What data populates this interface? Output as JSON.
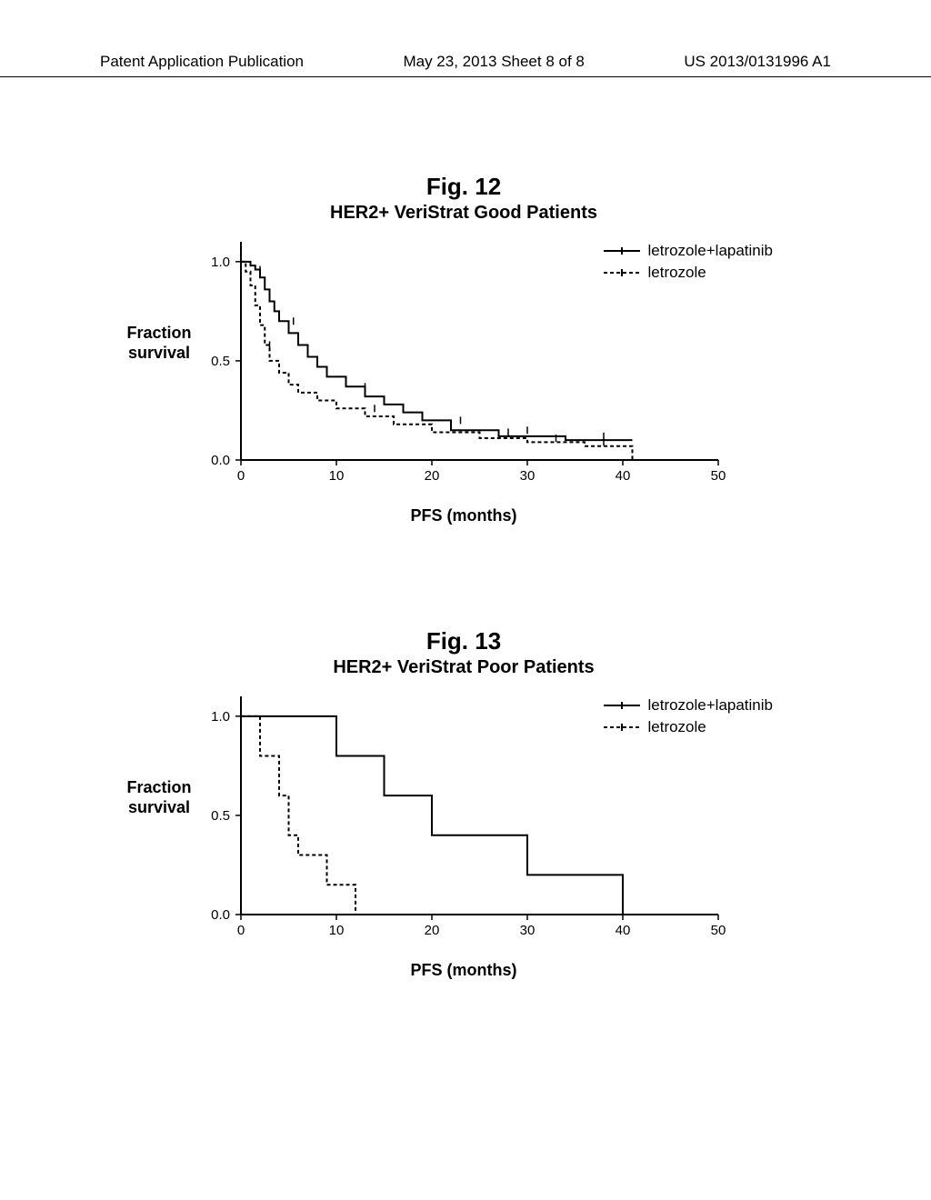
{
  "header": {
    "left": "Patent Application Publication",
    "center": "May 23, 2013  Sheet 8 of 8",
    "right": "US 2013/0131996 A1"
  },
  "colors": {
    "line": "#000000",
    "background": "#ffffff"
  },
  "figures": [
    {
      "id": "fig12",
      "label": "Fig. 12",
      "title": "HER2+ VeriStrat Good Patients",
      "ylabel_line1": "Fraction",
      "ylabel_line2": "survival",
      "xlabel": "PFS (months)",
      "xlim": [
        0,
        50
      ],
      "ylim": [
        0,
        1.1
      ],
      "xticks": [
        0,
        10,
        20,
        30,
        40,
        50
      ],
      "yticks": [
        0.0,
        0.5,
        1.0
      ],
      "ytick_labels": [
        "0.0",
        "0.5",
        "1.0"
      ],
      "fontsize_ticks": 15,
      "fontsize_labels": 18,
      "line_color": "#000000",
      "line_width": 2,
      "legend": [
        {
          "label": "letrozole+lapatinib",
          "dash": "solid",
          "tick": true
        },
        {
          "label": "letrozole",
          "dash": "dashed",
          "tick": true
        }
      ],
      "series": [
        {
          "name": "letrozole+lapatinib",
          "dash": "solid",
          "points": [
            [
              0,
              1.0
            ],
            [
              1,
              1.0
            ],
            [
              1,
              0.98
            ],
            [
              1.5,
              0.98
            ],
            [
              1.5,
              0.96
            ],
            [
              2,
              0.96
            ],
            [
              2,
              0.92
            ],
            [
              2.5,
              0.92
            ],
            [
              2.5,
              0.86
            ],
            [
              3,
              0.86
            ],
            [
              3,
              0.8
            ],
            [
              3.5,
              0.8
            ],
            [
              3.5,
              0.75
            ],
            [
              4,
              0.75
            ],
            [
              4,
              0.7
            ],
            [
              5,
              0.7
            ],
            [
              5,
              0.64
            ],
            [
              6,
              0.64
            ],
            [
              6,
              0.58
            ],
            [
              7,
              0.58
            ],
            [
              7,
              0.52
            ],
            [
              8,
              0.52
            ],
            [
              8,
              0.47
            ],
            [
              9,
              0.47
            ],
            [
              9,
              0.42
            ],
            [
              11,
              0.42
            ],
            [
              11,
              0.37
            ],
            [
              13,
              0.37
            ],
            [
              13,
              0.32
            ],
            [
              15,
              0.32
            ],
            [
              15,
              0.28
            ],
            [
              17,
              0.28
            ],
            [
              17,
              0.24
            ],
            [
              19,
              0.24
            ],
            [
              19,
              0.2
            ],
            [
              22,
              0.2
            ],
            [
              22,
              0.15
            ],
            [
              27,
              0.15
            ],
            [
              27,
              0.12
            ],
            [
              34,
              0.12
            ],
            [
              34,
              0.1
            ],
            [
              41,
              0.1
            ],
            [
              41,
              0.1
            ]
          ],
          "censor_ticks": [
            [
              2,
              0.96
            ],
            [
              5.5,
              0.7
            ],
            [
              13,
              0.37
            ],
            [
              23,
              0.2
            ],
            [
              30,
              0.15
            ],
            [
              38,
              0.12
            ]
          ]
        },
        {
          "name": "letrozole",
          "dash": "dashed",
          "points": [
            [
              0,
              1.0
            ],
            [
              0.5,
              1.0
            ],
            [
              0.5,
              0.95
            ],
            [
              1,
              0.95
            ],
            [
              1,
              0.88
            ],
            [
              1.5,
              0.88
            ],
            [
              1.5,
              0.78
            ],
            [
              2,
              0.78
            ],
            [
              2,
              0.68
            ],
            [
              2.5,
              0.68
            ],
            [
              2.5,
              0.58
            ],
            [
              3,
              0.58
            ],
            [
              3,
              0.5
            ],
            [
              4,
              0.5
            ],
            [
              4,
              0.44
            ],
            [
              5,
              0.44
            ],
            [
              5,
              0.38
            ],
            [
              6,
              0.38
            ],
            [
              6,
              0.34
            ],
            [
              8,
              0.34
            ],
            [
              8,
              0.3
            ],
            [
              10,
              0.3
            ],
            [
              10,
              0.26
            ],
            [
              13,
              0.26
            ],
            [
              13,
              0.22
            ],
            [
              16,
              0.22
            ],
            [
              16,
              0.18
            ],
            [
              20,
              0.18
            ],
            [
              20,
              0.14
            ],
            [
              25,
              0.14
            ],
            [
              25,
              0.11
            ],
            [
              30,
              0.11
            ],
            [
              30,
              0.09
            ],
            [
              36,
              0.09
            ],
            [
              36,
              0.07
            ],
            [
              41,
              0.07
            ],
            [
              41,
              0.0
            ]
          ],
          "censor_ticks": [
            [
              3,
              0.58
            ],
            [
              14,
              0.26
            ],
            [
              22,
              0.18
            ],
            [
              28,
              0.14
            ],
            [
              33,
              0.11
            ],
            [
              38,
              0.09
            ]
          ]
        }
      ]
    },
    {
      "id": "fig13",
      "label": "Fig. 13",
      "title": "HER2+ VeriStrat Poor Patients",
      "ylabel_line1": "Fraction",
      "ylabel_line2": "survival",
      "xlabel": "PFS (months)",
      "xlim": [
        0,
        50
      ],
      "ylim": [
        0,
        1.1
      ],
      "xticks": [
        0,
        10,
        20,
        30,
        40,
        50
      ],
      "yticks": [
        0.0,
        0.5,
        1.0
      ],
      "ytick_labels": [
        "0.0",
        "0.5",
        "1.0"
      ],
      "fontsize_ticks": 15,
      "fontsize_labels": 18,
      "line_color": "#000000",
      "line_width": 2,
      "legend": [
        {
          "label": "letrozole+lapatinib",
          "dash": "solid",
          "tick": true
        },
        {
          "label": "letrozole",
          "dash": "dashed",
          "tick": true
        }
      ],
      "series": [
        {
          "name": "letrozole+lapatinib",
          "dash": "solid",
          "points": [
            [
              0,
              1.0
            ],
            [
              10,
              1.0
            ],
            [
              10,
              0.8
            ],
            [
              15,
              0.8
            ],
            [
              15,
              0.6
            ],
            [
              20,
              0.6
            ],
            [
              20,
              0.4
            ],
            [
              30,
              0.4
            ],
            [
              30,
              0.2
            ],
            [
              40,
              0.2
            ],
            [
              40,
              0.0
            ]
          ],
          "censor_ticks": []
        },
        {
          "name": "letrozole",
          "dash": "dashed",
          "points": [
            [
              0,
              1.0
            ],
            [
              2,
              1.0
            ],
            [
              2,
              0.8
            ],
            [
              4,
              0.8
            ],
            [
              4,
              0.6
            ],
            [
              5,
              0.6
            ],
            [
              5,
              0.4
            ],
            [
              6,
              0.4
            ],
            [
              6,
              0.3
            ],
            [
              9,
              0.3
            ],
            [
              9,
              0.15
            ],
            [
              12,
              0.15
            ],
            [
              12,
              0.0
            ]
          ],
          "censor_ticks": []
        }
      ]
    }
  ]
}
